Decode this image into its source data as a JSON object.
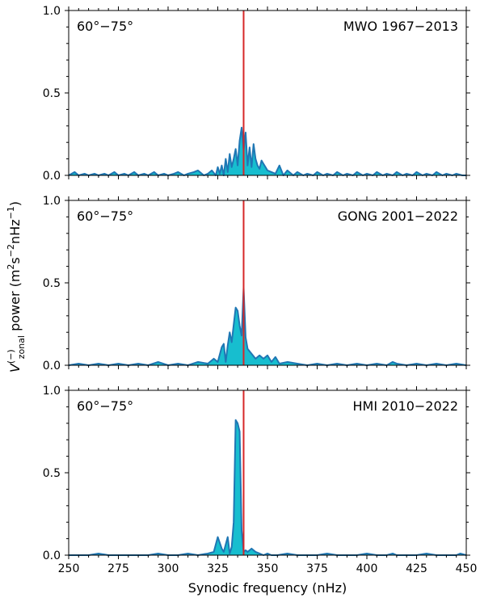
{
  "figure": {
    "ylabel_main": "V",
    "ylabel_sup": "(−)",
    "ylabel_sub": "zonal",
    "ylabel_rest": " power (m",
    "ylabel_units_2": "2",
    "ylabel_s": "s",
    "ylabel_units_m2": "−2",
    "ylabel_nhz": "nHz",
    "ylabel_units_m1": "−1",
    "ylabel_close": ")",
    "xlabel": "Synodic frequency (nHz)"
  },
  "colors": {
    "fill": "#17becf",
    "line": "#1f77b4",
    "marker": "#d62728",
    "axis": "#000000"
  },
  "chart_data": [
    {
      "type": "area",
      "latitude_label": "60°−75°",
      "dataset_label": "MWO 1967−2013",
      "xlim": [
        250,
        450
      ],
      "ylim": [
        0,
        1.0
      ],
      "yticks": [
        "0.0",
        "0.5",
        "1.0"
      ],
      "marker_x": 338,
      "x": [
        250,
        253,
        255,
        258,
        260,
        263,
        265,
        268,
        270,
        273,
        275,
        278,
        280,
        283,
        285,
        288,
        290,
        293,
        295,
        298,
        300,
        303,
        305,
        308,
        310,
        313,
        315,
        318,
        320,
        322,
        324,
        325,
        326,
        327,
        328,
        329,
        330,
        331,
        332,
        333,
        334,
        335,
        336,
        337,
        338,
        339,
        340,
        341,
        342,
        343,
        344,
        345,
        346,
        347,
        348,
        349,
        350,
        352,
        354,
        356,
        358,
        360,
        363,
        365,
        368,
        370,
        373,
        375,
        378,
        380,
        383,
        385,
        388,
        390,
        393,
        395,
        398,
        400,
        403,
        405,
        408,
        410,
        413,
        415,
        418,
        420,
        423,
        425,
        428,
        430,
        433,
        435,
        438,
        440,
        443,
        445,
        448,
        450
      ],
      "y": [
        0.0,
        0.02,
        0.0,
        0.01,
        0.0,
        0.01,
        0.0,
        0.01,
        0.0,
        0.02,
        0.0,
        0.01,
        0.0,
        0.02,
        0.0,
        0.01,
        0.0,
        0.02,
        0.0,
        0.01,
        0.0,
        0.01,
        0.02,
        0.0,
        0.01,
        0.02,
        0.03,
        0.0,
        0.01,
        0.03,
        0.0,
        0.05,
        0.01,
        0.06,
        0.0,
        0.1,
        0.02,
        0.13,
        0.05,
        0.1,
        0.16,
        0.06,
        0.21,
        0.29,
        0.15,
        0.26,
        0.06,
        0.17,
        0.05,
        0.19,
        0.1,
        0.06,
        0.04,
        0.09,
        0.07,
        0.05,
        0.03,
        0.02,
        0.01,
        0.06,
        0.0,
        0.03,
        0.0,
        0.02,
        0.0,
        0.01,
        0.0,
        0.02,
        0.0,
        0.01,
        0.0,
        0.02,
        0.0,
        0.01,
        0.0,
        0.02,
        0.0,
        0.01,
        0.0,
        0.02,
        0.0,
        0.01,
        0.0,
        0.02,
        0.0,
        0.01,
        0.0,
        0.02,
        0.0,
        0.01,
        0.0,
        0.02,
        0.0,
        0.01,
        0.0,
        0.01,
        0.0,
        0.0
      ]
    },
    {
      "type": "area",
      "latitude_label": "60°−75°",
      "dataset_label": "GONG 2001−2022",
      "xlim": [
        250,
        450
      ],
      "ylim": [
        0,
        1.0
      ],
      "yticks": [
        "0.0",
        "0.5",
        "1.0"
      ],
      "marker_x": 338,
      "x": [
        250,
        255,
        260,
        265,
        270,
        275,
        280,
        285,
        290,
        295,
        300,
        305,
        310,
        315,
        320,
        323,
        325,
        327,
        328,
        329,
        330,
        331,
        332,
        334,
        335,
        336,
        337,
        338,
        339,
        340,
        342,
        344,
        346,
        348,
        350,
        352,
        354,
        356,
        360,
        365,
        370,
        375,
        380,
        385,
        390,
        395,
        400,
        405,
        410,
        413,
        415,
        420,
        425,
        430,
        435,
        440,
        445,
        450
      ],
      "y": [
        0.0,
        0.01,
        0.0,
        0.01,
        0.0,
        0.01,
        0.0,
        0.01,
        0.0,
        0.02,
        0.0,
        0.01,
        0.0,
        0.02,
        0.01,
        0.04,
        0.02,
        0.11,
        0.13,
        0.02,
        0.12,
        0.2,
        0.14,
        0.35,
        0.33,
        0.24,
        0.18,
        0.47,
        0.17,
        0.1,
        0.07,
        0.04,
        0.06,
        0.04,
        0.06,
        0.02,
        0.05,
        0.01,
        0.02,
        0.01,
        0.0,
        0.01,
        0.0,
        0.01,
        0.0,
        0.01,
        0.0,
        0.01,
        0.0,
        0.02,
        0.01,
        0.0,
        0.01,
        0.0,
        0.01,
        0.0,
        0.01,
        0.0
      ]
    },
    {
      "type": "area",
      "latitude_label": "60°−75°",
      "dataset_label": "HMI 2010−2022",
      "xlim": [
        250,
        450
      ],
      "ylim": [
        0,
        1.0
      ],
      "yticks": [
        "0.0",
        "0.5",
        "1.0"
      ],
      "marker_x": 338,
      "x": [
        250,
        255,
        260,
        265,
        270,
        275,
        280,
        285,
        290,
        295,
        300,
        305,
        310,
        315,
        320,
        323,
        325,
        327,
        328,
        330,
        331,
        332,
        333,
        334,
        335,
        336,
        337,
        338,
        339,
        340,
        342,
        344,
        346,
        348,
        350,
        352,
        355,
        360,
        365,
        370,
        375,
        380,
        385,
        390,
        395,
        400,
        405,
        410,
        413,
        415,
        420,
        425,
        430,
        435,
        440,
        445,
        447,
        450
      ],
      "y": [
        0.0,
        0.0,
        0.0,
        0.01,
        0.0,
        0.0,
        0.0,
        0.0,
        0.0,
        0.01,
        0.0,
        0.0,
        0.01,
        0.0,
        0.01,
        0.02,
        0.11,
        0.04,
        0.02,
        0.11,
        0.01,
        0.05,
        0.2,
        0.82,
        0.8,
        0.75,
        0.15,
        0.02,
        0.03,
        0.02,
        0.04,
        0.02,
        0.01,
        0.0,
        0.01,
        0.0,
        0.0,
        0.01,
        0.0,
        0.0,
        0.0,
        0.01,
        0.0,
        0.0,
        0.0,
        0.01,
        0.0,
        0.0,
        0.01,
        0.0,
        0.0,
        0.0,
        0.01,
        0.0,
        0.0,
        0.0,
        0.01,
        0.0
      ]
    }
  ],
  "xticks": [
    "250",
    "275",
    "300",
    "325",
    "350",
    "375",
    "400",
    "425",
    "450"
  ]
}
